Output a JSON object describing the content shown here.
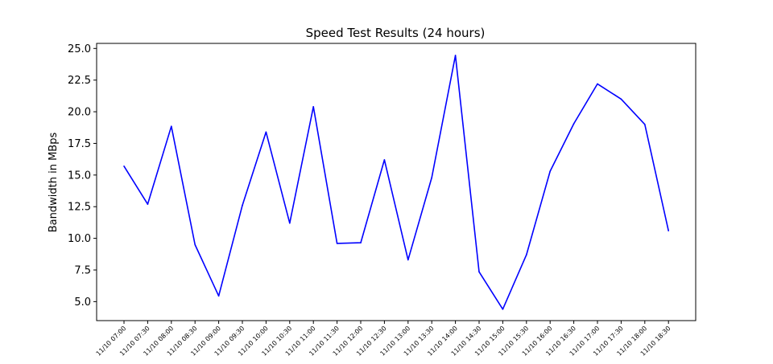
{
  "chart_data": {
    "type": "line",
    "title": "Speed Test Results (24 hours)",
    "xlabel": "",
    "ylabel": "Bandwidth in MBps",
    "categories": [
      "11/10 07:00",
      "11/10 07:30",
      "11/10 08:00",
      "11/10 08:30",
      "11/10 09:00",
      "11/10 09:30",
      "11/10 10:00",
      "11/10 10:30",
      "11/10 11:00",
      "11/10 11:30",
      "11/10 12:00",
      "11/10 12:30",
      "11/10 13:00",
      "11/10 13:30",
      "11/10 14:00",
      "11/10 14:30",
      "11/10 15:00",
      "11/10 15:30",
      "11/10 16:00",
      "11/10 16:30",
      "11/10 17:00",
      "11/10 17:30",
      "11/10 18:00",
      "11/10 18:30"
    ],
    "series": [
      {
        "color": "#0000ff",
        "values": [
          15.7,
          12.7,
          18.85,
          9.5,
          5.45,
          12.6,
          18.4,
          11.2,
          20.4,
          9.6,
          9.65,
          16.2,
          8.3,
          14.8,
          24.45,
          7.35,
          4.4,
          8.7,
          15.3,
          19.05,
          22.2,
          21.0,
          19.0,
          10.6
        ]
      }
    ],
    "ylim": [
      3.5,
      25.4
    ],
    "yticks": [
      "5.0",
      "7.5",
      "10.0",
      "12.5",
      "15.0",
      "17.5",
      "20.0",
      "22.5",
      "25.0"
    ],
    "grid": false
  }
}
